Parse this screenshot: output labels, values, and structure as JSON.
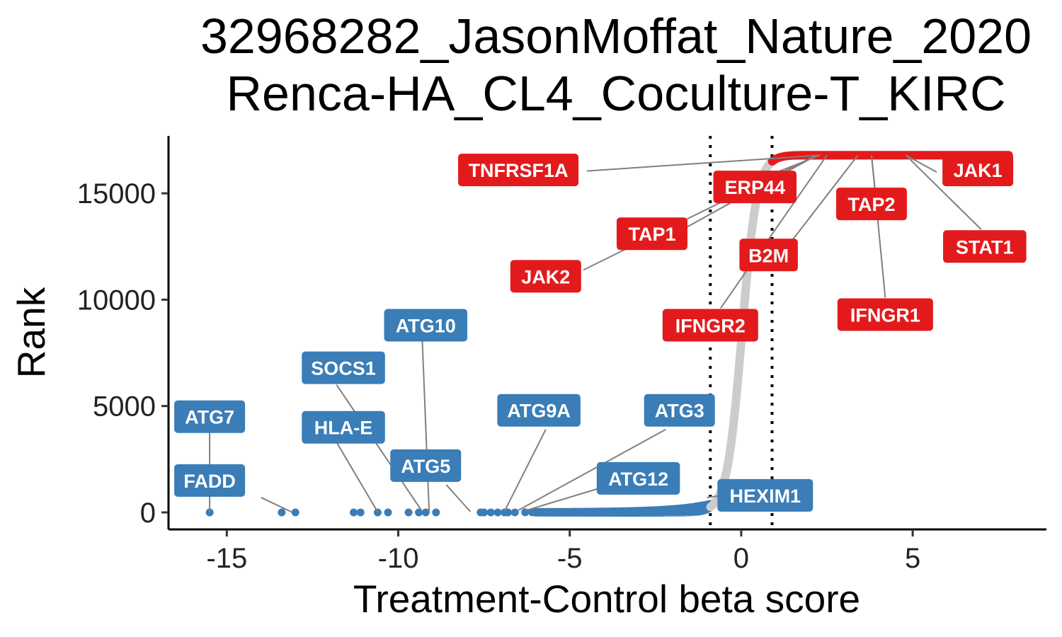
{
  "chart_data": {
    "type": "scatter",
    "title": "32968282_JasonMoffat_Nature_2020",
    "subtitle": "Renca-HA_CL4_Coculture-T_KIRC",
    "xlabel": "Treatment-Control beta score",
    "ylabel": "Rank",
    "xlim": [
      -16.7,
      8.9
    ],
    "ylim": [
      -800,
      17700
    ],
    "xticks": [
      -15,
      -10,
      -5,
      0,
      5
    ],
    "xtick_labels": [
      "-15",
      "-10",
      "-5",
      "0",
      "5"
    ],
    "yticks": [
      0,
      5000,
      10000,
      15000
    ],
    "ytick_labels": [
      "0",
      "5000",
      "10000",
      "15000"
    ],
    "thresholds": [
      -0.9,
      0.9
    ],
    "n_genes": 16800,
    "grid": false,
    "legend": "none",
    "colors": {
      "negative": "#3a7db7",
      "neutral": "#cccccc",
      "positive": "#e31a1c"
    },
    "negative_points": [
      {
        "x": -15.5,
        "y": 0
      },
      {
        "x": -13.4,
        "y": 0
      },
      {
        "x": -13.0,
        "y": 0
      },
      {
        "x": -11.3,
        "y": 0
      },
      {
        "x": -11.1,
        "y": 0
      },
      {
        "x": -10.6,
        "y": 0
      },
      {
        "x": -10.3,
        "y": 0
      },
      {
        "x": -9.7,
        "y": 0
      },
      {
        "x": -9.4,
        "y": 0
      },
      {
        "x": -9.2,
        "y": 0
      },
      {
        "x": -8.9,
        "y": 0
      },
      {
        "x": -7.6,
        "y": 0
      },
      {
        "x": -7.5,
        "y": 0
      },
      {
        "x": -7.3,
        "y": 0
      },
      {
        "x": -7.1,
        "y": 0
      },
      {
        "x": -6.9,
        "y": 0
      },
      {
        "x": -6.8,
        "y": 0
      },
      {
        "x": -6.6,
        "y": 0
      },
      {
        "x": -6.3,
        "y": 5
      },
      {
        "x": -6.1,
        "y": 8
      },
      {
        "x": -5.8,
        "y": 10
      }
    ],
    "positive_points": [
      {
        "x": 7.3,
        "y": 16790
      },
      {
        "x": 7.5,
        "y": 16795
      },
      {
        "x": 7.7,
        "y": 16800
      }
    ],
    "labels": [
      {
        "gene": "ATG7",
        "group": "negative",
        "point": [
          -15.5,
          1
        ],
        "box": [
          -15.5,
          4500
        ],
        "lead_end": [
          -15.5,
          3800
        ]
      },
      {
        "gene": "FADD",
        "group": "negative",
        "point": [
          -13.1,
          10
        ],
        "box": [
          -15.5,
          1500
        ],
        "lead_end": [
          -14.0,
          700
        ]
      },
      {
        "gene": "HLA-E",
        "group": "negative",
        "point": [
          -10.6,
          20
        ],
        "box": [
          -11.6,
          4000
        ],
        "lead_end": [
          -11.8,
          3300
        ]
      },
      {
        "gene": "SOCS1",
        "group": "negative",
        "point": [
          -9.3,
          40
        ],
        "box": [
          -11.6,
          6800
        ],
        "lead_end": [
          -11.8,
          6000
        ]
      },
      {
        "gene": "ATG10",
        "group": "negative",
        "point": [
          -9.1,
          30
        ],
        "box": [
          -9.2,
          8800
        ],
        "lead_end": [
          -9.3,
          8100
        ]
      },
      {
        "gene": "ATG5",
        "group": "negative",
        "point": [
          -7.9,
          40
        ],
        "box": [
          -9.2,
          2200
        ],
        "lead_end": [
          -8.6,
          1300
        ]
      },
      {
        "gene": "ATG9A",
        "group": "negative",
        "point": [
          -6.9,
          60
        ],
        "box": [
          -5.9,
          4800
        ],
        "lead_end": [
          -5.7,
          3900
        ]
      },
      {
        "gene": "ATG3",
        "group": "negative",
        "point": [
          -6.5,
          100
        ],
        "box": [
          -1.8,
          4800
        ],
        "lead_end": [
          -2.2,
          3900
        ]
      },
      {
        "gene": "ATG12",
        "group": "negative",
        "point": [
          -6.3,
          80
        ],
        "box": [
          -3.0,
          1600
        ],
        "lead_end": [
          -4.0,
          1200
        ]
      },
      {
        "gene": "HEXIM1",
        "group": "negative",
        "point": [
          -1.0,
          700
        ],
        "box": [
          0.7,
          800
        ],
        "lead_end": [
          -0.5,
          800
        ]
      },
      {
        "gene": "TNFRSF1A",
        "group": "positive",
        "point": [
          2.3,
          16790
        ],
        "box": [
          -6.5,
          16100
        ],
        "lead_end": [
          -4.5,
          16050
        ]
      },
      {
        "gene": "ERP44",
        "group": "positive",
        "point": [
          2.3,
          16790
        ],
        "box": [
          0.4,
          15300
        ],
        "lead_end": [
          0.1,
          15400
        ]
      },
      {
        "gene": "TAP1",
        "group": "positive",
        "point": [
          2.2,
          16790
        ],
        "box": [
          -2.6,
          13100
        ],
        "lead_end": [
          -1.6,
          13400
        ]
      },
      {
        "gene": "JAK2",
        "group": "positive",
        "point": [
          2.2,
          16790
        ],
        "box": [
          -5.7,
          11100
        ],
        "lead_end": [
          -4.6,
          11400
        ]
      },
      {
        "gene": "B2M",
        "group": "positive",
        "point": [
          3.4,
          16790
        ],
        "box": [
          0.8,
          12100
        ],
        "lead_end": [
          1.3,
          12400
        ]
      },
      {
        "gene": "IFNGR2",
        "group": "positive",
        "point": [
          2.5,
          16790
        ],
        "box": [
          -0.9,
          8800
        ],
        "lead_end": [
          -0.6,
          9600
        ]
      },
      {
        "gene": "TAP2",
        "group": "positive",
        "point": [
          3.8,
          16790
        ],
        "box": [
          3.8,
          14500
        ],
        "lead_end": [
          3.9,
          15200
        ]
      },
      {
        "gene": "IFNGR1",
        "group": "positive",
        "point": [
          3.8,
          16790
        ],
        "box": [
          4.2,
          9300
        ],
        "lead_end": [
          4.2,
          10100
        ]
      },
      {
        "gene": "JAK1",
        "group": "positive",
        "point": [
          4.8,
          16790
        ],
        "box": [
          6.9,
          16100
        ],
        "lead_end": [
          5.7,
          16000
        ]
      },
      {
        "gene": "STAT1",
        "group": "positive",
        "point": [
          4.8,
          16790
        ],
        "box": [
          7.1,
          12500
        ],
        "lead_end": [
          7.0,
          13300
        ]
      }
    ]
  }
}
